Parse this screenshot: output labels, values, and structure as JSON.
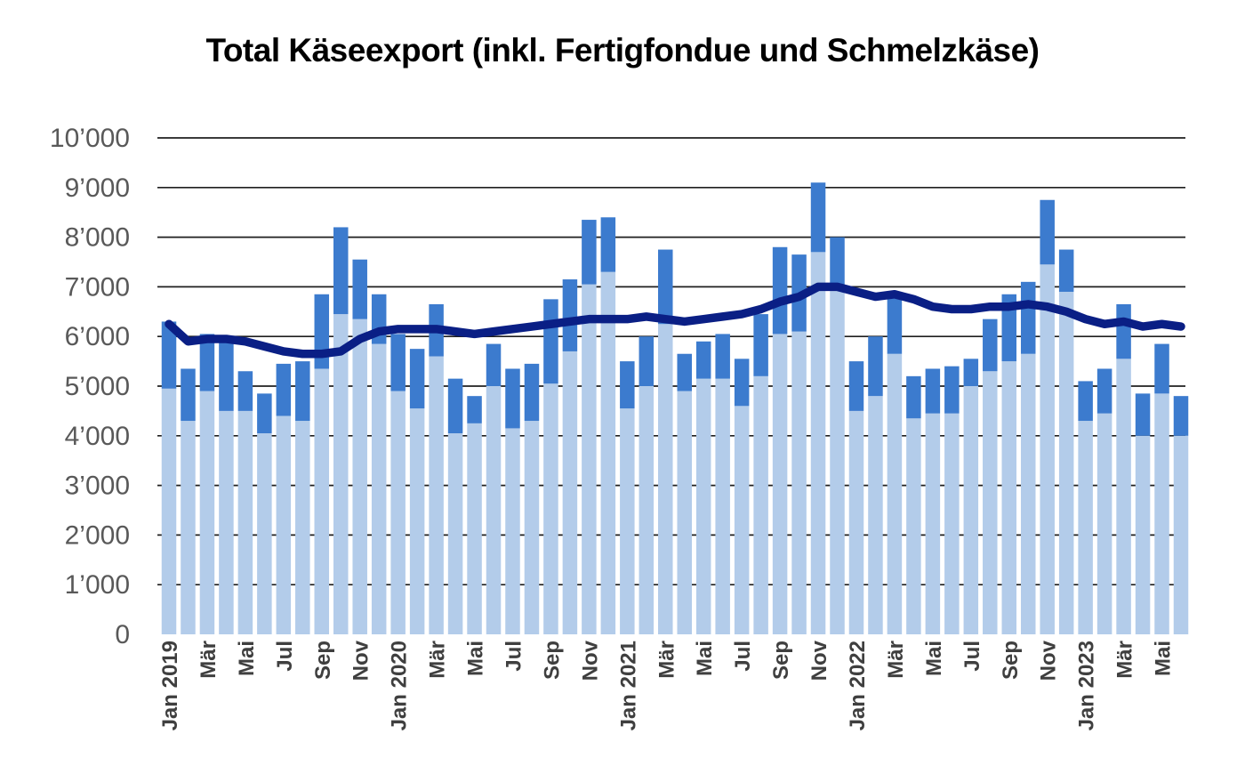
{
  "title": "Total Käseexport (inkl. Fertigfondue und Schmelzkäse)",
  "colors": {
    "bar_light": "#B3CCEA",
    "bar_dark": "#3C7BCE",
    "trend_line": "#0A1F85",
    "grid": "#1f1f1f",
    "y_tick_text": "#595959",
    "x_tick_text": "#3f3f3f",
    "background": "#ffffff"
  },
  "chart_data": {
    "type": "bar",
    "subtype": "stacked-bars-with-trend-line",
    "title": "Total Käseexport (inkl. Fertigfondue und Schmelzkäse)",
    "xlabel": "",
    "ylabel": "",
    "ylim": [
      0,
      10000
    ],
    "y_tick_step": 1000,
    "grid": true,
    "legend_position": "none",
    "y_tick_labels": [
      "0",
      "1’000",
      "2’000",
      "3’000",
      "4’000",
      "5’000",
      "6’000",
      "7’000",
      "8’000",
      "9’000",
      "10’000"
    ],
    "x_tick_labels": [
      "Jan 2019",
      "",
      "Mär",
      "",
      "Mai",
      "",
      "Jul",
      "",
      "Sep",
      "",
      "Nov",
      "",
      "Jan 2020",
      "",
      "Mär",
      "",
      "Mai",
      "",
      "Jul",
      "",
      "Sep",
      "",
      "Nov",
      "",
      "Jan 2021",
      "",
      "Mär",
      "",
      "Mai",
      "",
      "Jul",
      "",
      "Sep",
      "",
      "Nov",
      "",
      "Jan 2022",
      "",
      "Mär",
      "",
      "Mai",
      "",
      "Jul",
      "",
      "Sep",
      "",
      "Nov",
      "",
      "Jan 2023",
      "",
      "Mär",
      "",
      "Mai",
      ""
    ],
    "series": [
      {
        "name": "bar-light-segment",
        "segment": "from 0 up to split value",
        "color": "#B3CCEA",
        "values": [
          4950,
          4300,
          4900,
          4500,
          4500,
          4050,
          4400,
          4300,
          5350,
          6450,
          6350,
          5850,
          4900,
          4550,
          5600,
          4050,
          4250,
          5000,
          4150,
          4300,
          5050,
          5700,
          7050,
          7300,
          4550,
          5000,
          6250,
          4900,
          5150,
          5150,
          4600,
          5200,
          6050,
          6100,
          7700,
          7050,
          4500,
          4800,
          5650,
          4350,
          4450,
          4450,
          5000,
          5300,
          5500,
          5650,
          7450,
          6900,
          4300,
          4450,
          5550,
          4000,
          4850,
          4000
        ]
      },
      {
        "name": "bar-dark-segment",
        "segment": "from split value up to bar total",
        "color": "#3C7BCE",
        "values": [
          6300,
          5350,
          6050,
          5950,
          5300,
          4850,
          5450,
          5500,
          6850,
          8200,
          7550,
          6850,
          6050,
          5750,
          6650,
          5150,
          4800,
          5850,
          5350,
          5450,
          6750,
          7150,
          8350,
          8400,
          5500,
          6000,
          7750,
          5650,
          5900,
          6050,
          5550,
          6450,
          7800,
          7650,
          9100,
          8000,
          5500,
          6000,
          6850,
          5200,
          5350,
          5400,
          5550,
          6350,
          6850,
          7100,
          8750,
          7750,
          5100,
          5350,
          6650,
          4850,
          5850,
          4800
        ]
      },
      {
        "name": "trend-line",
        "segment": "line",
        "color": "#0A1F85",
        "values": [
          6250,
          5900,
          5950,
          5950,
          5900,
          5800,
          5700,
          5650,
          5650,
          5700,
          5950,
          6100,
          6150,
          6150,
          6150,
          6100,
          6050,
          6100,
          6150,
          6200,
          6250,
          6300,
          6350,
          6350,
          6350,
          6400,
          6350,
          6300,
          6350,
          6400,
          6450,
          6550,
          6700,
          6800,
          7000,
          7000,
          6900,
          6800,
          6850,
          6750,
          6600,
          6550,
          6550,
          6600,
          6600,
          6650,
          6600,
          6500,
          6350,
          6250,
          6300,
          6200,
          6250,
          6200
        ]
      }
    ]
  }
}
